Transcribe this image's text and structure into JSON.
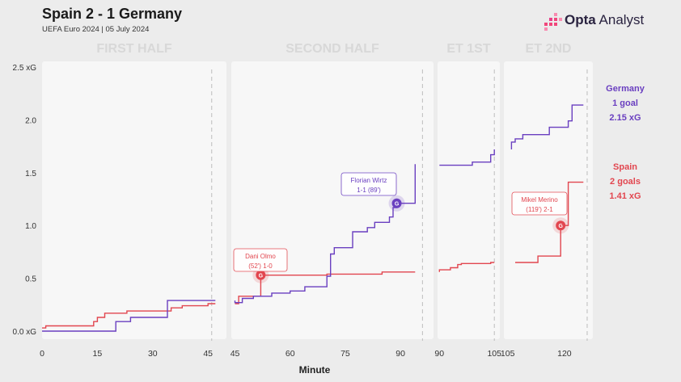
{
  "header": {
    "title": "Spain 2 - 1 Germany",
    "subtitle": "UEFA Euro 2024 | 05 July 2024",
    "brand_bold": "Opta",
    "brand_light": " Analyst"
  },
  "colors": {
    "germany": "#6a3fc0",
    "spain": "#e2464f",
    "grid": "#bdbdbd",
    "panel": "#f7f7f7",
    "background": "#ececec",
    "label": "#d8d8d8"
  },
  "chart_data": {
    "type": "line",
    "subtype": "step",
    "xlabel": "Minute",
    "ylabel": "",
    "ylim": [
      0,
      2.5
    ],
    "yticks": [
      0,
      0.5,
      1.0,
      1.5,
      2.0,
      2.5
    ],
    "ytick_labels": [
      "0.0 xG",
      "0.5",
      "1.0",
      "1.5",
      "2.0",
      "2.5 xG"
    ],
    "grid": false,
    "panels": [
      {
        "label": "FIRST HALF",
        "xlim": [
          0,
          50
        ],
        "ticks": [
          0,
          15,
          30,
          45
        ],
        "tick_labels": [
          "0",
          "15",
          "30",
          "45"
        ],
        "period_end": 46
      },
      {
        "label": "SECOND HALF",
        "xlim": [
          44,
          99
        ],
        "ticks": [
          45,
          60,
          75,
          90
        ],
        "tick_labels": [
          "45",
          "60",
          "75",
          "90"
        ],
        "period_end": 96
      },
      {
        "label": "ET 1ST",
        "xlim": [
          89.5,
          106.5
        ],
        "ticks": [
          90,
          105
        ],
        "tick_labels": [
          "90",
          "105"
        ],
        "period_end": 105
      },
      {
        "label": "ET 2ND",
        "xlim": [
          104,
          127.5
        ],
        "ticks": [
          105,
          120
        ],
        "tick_labels": [
          "105",
          "120"
        ],
        "period_end": 126
      }
    ],
    "series": [
      {
        "name": "Germany",
        "legend": [
          "Germany",
          "1 goal",
          "2.15 xG"
        ],
        "goals": 1,
        "total_xg": 2.15,
        "segments": [
          [
            [
              0,
              0
            ],
            [
              20,
              0
            ],
            [
              20,
              0.09
            ],
            [
              24,
              0.09
            ],
            [
              24,
              0.13
            ],
            [
              34,
              0.13
            ],
            [
              34,
              0.29
            ],
            [
              47,
              0.29
            ]
          ],
          [
            [
              45,
              0.29
            ],
            [
              45,
              0.27
            ],
            [
              47,
              0.27
            ],
            [
              47,
              0.31
            ],
            [
              50,
              0.31
            ],
            [
              50,
              0.33
            ],
            [
              55,
              0.33
            ],
            [
              55,
              0.36
            ],
            [
              60,
              0.36
            ],
            [
              60,
              0.38
            ],
            [
              64,
              0.38
            ],
            [
              64,
              0.42
            ],
            [
              70,
              0.42
            ],
            [
              70,
              0.52
            ],
            [
              71,
              0.52
            ],
            [
              71,
              0.73
            ],
            [
              72,
              0.73
            ],
            [
              72,
              0.79
            ],
            [
              77,
              0.79
            ],
            [
              77,
              0.94
            ],
            [
              81,
              0.94
            ],
            [
              81,
              0.98
            ],
            [
              83,
              0.98
            ],
            [
              83,
              1.03
            ],
            [
              87,
              1.03
            ],
            [
              87,
              1.08
            ],
            [
              88,
              1.08
            ],
            [
              88,
              1.17
            ],
            [
              89,
              1.17
            ],
            [
              89,
              1.21
            ],
            [
              94,
              1.21
            ],
            [
              94,
              1.58
            ]
          ],
          [
            [
              90,
              1.57
            ],
            [
              99,
              1.57
            ],
            [
              99,
              1.6
            ],
            [
              104,
              1.6
            ],
            [
              104,
              1.67
            ],
            [
              105,
              1.67
            ],
            [
              105,
              1.72
            ]
          ],
          [
            [
              106,
              1.72
            ],
            [
              106,
              1.79
            ],
            [
              107,
              1.79
            ],
            [
              107,
              1.82
            ],
            [
              109,
              1.82
            ],
            [
              109,
              1.86
            ],
            [
              116,
              1.86
            ],
            [
              116,
              1.93
            ],
            [
              121,
              1.93
            ],
            [
              121,
              1.99
            ],
            [
              122,
              1.99
            ],
            [
              122,
              2.14
            ],
            [
              125,
              2.14
            ]
          ]
        ]
      },
      {
        "name": "Spain",
        "legend": [
          "Spain",
          "2 goals",
          "1.41 xG"
        ],
        "goals": 2,
        "total_xg": 1.41,
        "segments": [
          [
            [
              0,
              0.03
            ],
            [
              1,
              0.03
            ],
            [
              1,
              0.05
            ],
            [
              14,
              0.05
            ],
            [
              14,
              0.09
            ],
            [
              15,
              0.09
            ],
            [
              15,
              0.13
            ],
            [
              17,
              0.13
            ],
            [
              17,
              0.17
            ],
            [
              23,
              0.17
            ],
            [
              23,
              0.19
            ],
            [
              35,
              0.19
            ],
            [
              35,
              0.22
            ],
            [
              38,
              0.22
            ],
            [
              38,
              0.24
            ],
            [
              45,
              0.24
            ],
            [
              45,
              0.26
            ],
            [
              47,
              0.26
            ]
          ],
          [
            [
              45,
              0.26
            ],
            [
              46,
              0.26
            ],
            [
              46,
              0.33
            ],
            [
              52,
              0.33
            ],
            [
              52,
              0.53
            ],
            [
              70,
              0.53
            ],
            [
              70,
              0.54
            ],
            [
              85,
              0.54
            ],
            [
              85,
              0.56
            ],
            [
              94,
              0.56
            ]
          ],
          [
            [
              90,
              0.56
            ],
            [
              90,
              0.58
            ],
            [
              93,
              0.58
            ],
            [
              93,
              0.6
            ],
            [
              95,
              0.6
            ],
            [
              95,
              0.63
            ],
            [
              96,
              0.63
            ],
            [
              96,
              0.64
            ],
            [
              104,
              0.64
            ],
            [
              104,
              0.65
            ],
            [
              105,
              0.65
            ]
          ],
          [
            [
              107,
              0.65
            ],
            [
              113,
              0.65
            ],
            [
              113,
              0.71
            ],
            [
              119,
              0.71
            ],
            [
              119,
              1.0
            ],
            [
              121,
              1.0
            ],
            [
              121,
              1.41
            ],
            [
              125,
              1.41
            ]
          ]
        ]
      }
    ],
    "goals": [
      {
        "team": "Spain",
        "minute": 52,
        "xg": 0.53,
        "panel": 1,
        "marker": "G",
        "label": [
          "Dani Olmo",
          "(52') 1-0"
        ]
      },
      {
        "team": "Germany",
        "minute": 89,
        "xg": 1.21,
        "panel": 1,
        "marker": "G",
        "label": [
          "Florian Wirtz",
          "1-1 (89')"
        ]
      },
      {
        "team": "Spain",
        "minute": 119,
        "xg": 1.0,
        "panel": 3,
        "marker": "G",
        "label": [
          "Mikel Merino",
          "(119') 2-1"
        ]
      }
    ]
  }
}
